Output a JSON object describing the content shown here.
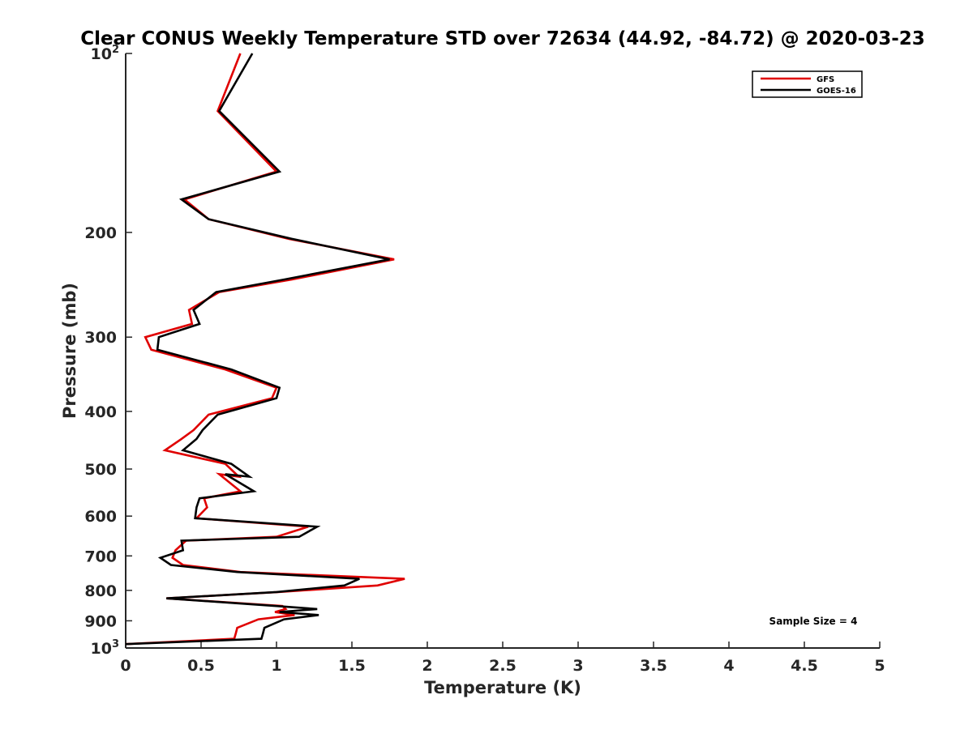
{
  "chart_data": {
    "type": "line",
    "title": "Clear CONUS Weekly Temperature STD over 72634 (44.92, -84.72) @ 2020-03-23",
    "xlabel": "Temperature (K)",
    "ylabel": "Pressure (mb)",
    "xlim": [
      0,
      5
    ],
    "ylim": [
      1000,
      100
    ],
    "y_scale": "log",
    "y_reversed": true,
    "grid": false,
    "legend_position": "top-right",
    "x_ticks": [
      "0",
      "0.5",
      "1",
      "1.5",
      "2",
      "2.5",
      "3",
      "3.5",
      "4",
      "4.5",
      "5"
    ],
    "y_ticks": [
      {
        "value": 100,
        "base": "10",
        "exp": "2"
      },
      {
        "value": 200,
        "label": "200"
      },
      {
        "value": 300,
        "label": "300"
      },
      {
        "value": 400,
        "label": "400"
      },
      {
        "value": 500,
        "label": "500"
      },
      {
        "value": 600,
        "label": "600"
      },
      {
        "value": 700,
        "label": "700"
      },
      {
        "value": 800,
        "label": "800"
      },
      {
        "value": 900,
        "label": "900"
      },
      {
        "value": 1000,
        "base": "10",
        "exp": "3"
      }
    ],
    "annotation": "Sample Size = 4",
    "series": [
      {
        "name": "GFS",
        "color": "#e00000",
        "x": [
          0.76,
          0.61,
          1.0,
          0.39,
          0.55,
          1.08,
          1.78,
          1.1,
          0.62,
          0.42,
          0.44,
          0.13,
          0.17,
          0.66,
          1.0,
          0.97,
          0.55,
          0.45,
          0.37,
          0.26,
          0.66,
          0.75,
          0.62,
          0.76,
          0.52,
          0.54,
          0.47,
          1.21,
          1.0,
          0.4,
          0.33,
          0.31,
          0.38,
          0.76,
          1.85,
          1.67,
          1.01,
          0.27,
          1.04,
          1.06,
          0.99,
          1.12,
          0.88,
          0.74,
          0.73,
          0.72,
          0.0
        ],
        "y": [
          100,
          125,
          158,
          176,
          190,
          205,
          222,
          240,
          252,
          270,
          285,
          300,
          315,
          340,
          365,
          380,
          405,
          430,
          445,
          465,
          490,
          515,
          510,
          545,
          560,
          580,
          605,
          625,
          650,
          660,
          685,
          705,
          725,
          745,
          765,
          785,
          805,
          825,
          850,
          860,
          870,
          880,
          895,
          925,
          945,
          965,
          985
        ]
      },
      {
        "name": "GOES-16",
        "color": "#000000",
        "x": [
          0.84,
          0.62,
          1.02,
          0.37,
          0.55,
          1.1,
          1.75,
          1.05,
          0.6,
          0.45,
          0.49,
          0.22,
          0.21,
          0.7,
          1.02,
          1.0,
          0.61,
          0.51,
          0.47,
          0.38,
          0.7,
          0.82,
          0.66,
          0.85,
          0.49,
          0.47,
          0.46,
          1.27,
          1.15,
          0.37,
          0.38,
          0.23,
          0.3,
          0.74,
          1.55,
          1.45,
          1.0,
          0.27,
          1.0,
          1.27,
          1.02,
          1.28,
          1.05,
          0.92,
          0.91,
          0.9,
          0.0
        ],
        "y": [
          100,
          125,
          158,
          176,
          190,
          205,
          222,
          240,
          252,
          270,
          285,
          300,
          315,
          340,
          365,
          380,
          405,
          430,
          445,
          465,
          490,
          515,
          510,
          545,
          560,
          580,
          605,
          625,
          650,
          660,
          685,
          705,
          725,
          745,
          765,
          785,
          805,
          825,
          850,
          860,
          870,
          880,
          895,
          925,
          945,
          965,
          985
        ]
      }
    ]
  }
}
